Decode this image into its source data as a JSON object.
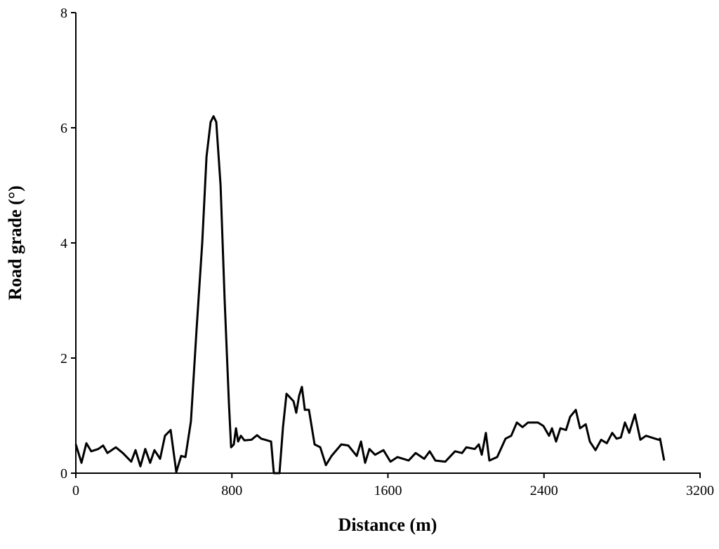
{
  "chart_data": {
    "type": "line",
    "xlabel": "Distance (m)",
    "ylabel": "Road grade (°)",
    "x": [
      0,
      29,
      54,
      79,
      115,
      140,
      162,
      205,
      241,
      284,
      306,
      331,
      356,
      381,
      403,
      432,
      457,
      486,
      515,
      540,
      562,
      590,
      619,
      648,
      670,
      691,
      706,
      720,
      742,
      763,
      785,
      796,
      810,
      821,
      832,
      846,
      864,
      900,
      929,
      950,
      1001,
      1015,
      1044,
      1062,
      1080,
      1102,
      1116,
      1130,
      1145,
      1159,
      1174,
      1195,
      1224,
      1253,
      1282,
      1311,
      1361,
      1397,
      1440,
      1462,
      1483,
      1505,
      1534,
      1577,
      1613,
      1649,
      1706,
      1742,
      1786,
      1814,
      1843,
      1894,
      1944,
      1980,
      2002,
      2045,
      2066,
      2081,
      2102,
      2120,
      2160,
      2203,
      2232,
      2261,
      2290,
      2318,
      2369,
      2397,
      2426,
      2441,
      2462,
      2484,
      2513,
      2534,
      2563,
      2585,
      2614,
      2635,
      2664,
      2693,
      2722,
      2750,
      2772,
      2794,
      2815,
      2837,
      2866,
      2894,
      2923,
      2988,
      2995,
      3016
    ],
    "series": [
      {
        "color": "#000000",
        "values": [
          0.5,
          0.18,
          0.52,
          0.38,
          0.42,
          0.48,
          0.35,
          0.45,
          0.35,
          0.2,
          0.4,
          0.12,
          0.42,
          0.18,
          0.4,
          0.25,
          0.65,
          0.75,
          0.02,
          0.3,
          0.28,
          0.9,
          2.5,
          4.0,
          5.5,
          6.1,
          6.2,
          6.1,
          5.0,
          3.0,
          1.2,
          0.45,
          0.5,
          0.78,
          0.55,
          0.65,
          0.57,
          0.58,
          0.66,
          0.6,
          0.55,
          0.0,
          0.0,
          0.8,
          1.38,
          1.3,
          1.25,
          1.05,
          1.35,
          1.5,
          1.1,
          1.1,
          0.5,
          0.45,
          0.14,
          0.3,
          0.5,
          0.48,
          0.3,
          0.55,
          0.18,
          0.42,
          0.32,
          0.4,
          0.2,
          0.28,
          0.22,
          0.35,
          0.25,
          0.38,
          0.22,
          0.2,
          0.38,
          0.35,
          0.45,
          0.42,
          0.5,
          0.32,
          0.7,
          0.22,
          0.28,
          0.6,
          0.65,
          0.88,
          0.8,
          0.88,
          0.88,
          0.82,
          0.65,
          0.78,
          0.55,
          0.78,
          0.75,
          0.98,
          1.1,
          0.78,
          0.85,
          0.55,
          0.4,
          0.58,
          0.52,
          0.7,
          0.6,
          0.62,
          0.88,
          0.7,
          1.02,
          0.58,
          0.65,
          0.58,
          0.6,
          0.22
        ]
      }
    ],
    "xlim": [
      0,
      3200
    ],
    "xticks": [
      0,
      800,
      1600,
      2400,
      3200
    ],
    "ylim": [
      0,
      8
    ],
    "yticks": [
      0,
      2,
      4,
      6,
      8
    ]
  }
}
